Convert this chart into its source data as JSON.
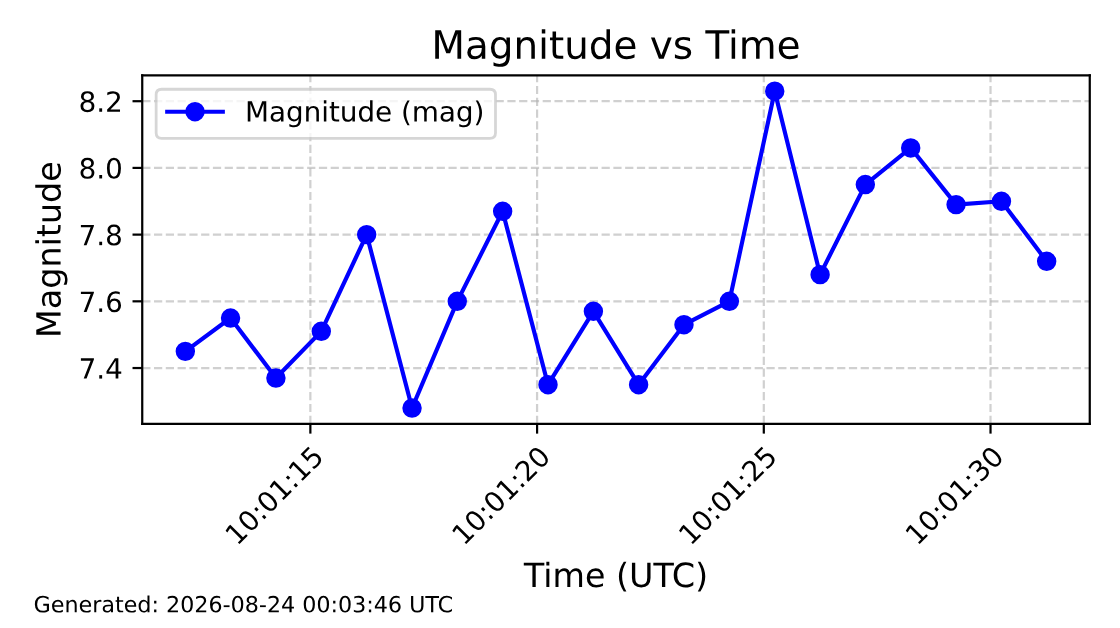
{
  "chart_data": {
    "type": "line",
    "title": "Magnitude vs Time",
    "xlabel": "Time (UTC)",
    "ylabel": "Magnitude",
    "x": [
      10.020067,
      10.020344,
      10.020622,
      10.0209,
      10.021178,
      10.021456,
      10.021733,
      10.022011,
      10.022289,
      10.022567,
      10.022844,
      10.023122,
      10.0234,
      10.023678,
      10.023956,
      10.024233,
      10.024511,
      10.024789,
      10.025067,
      10.025344
    ],
    "series": [
      {
        "name": "Magnitude (mag)",
        "color": "#0000ff",
        "values": [
          7.45,
          7.55,
          7.37,
          7.51,
          7.8,
          7.28,
          7.6,
          7.87,
          7.35,
          7.57,
          7.35,
          7.53,
          7.6,
          8.23,
          7.68,
          7.95,
          8.06,
          7.89,
          7.9,
          7.72
        ]
      }
    ],
    "xlim": [
      10.019803,
      10.025608
    ],
    "xticks": [
      {
        "value": 10.020833,
        "label": "10:01:15"
      },
      {
        "value": 10.022222,
        "label": "10:01:20"
      },
      {
        "value": 10.023611,
        "label": "10:01:25"
      },
      {
        "value": 10.025,
        "label": "10:01:30"
      }
    ],
    "ylim": [
      7.2325,
      8.2775
    ],
    "yticks": [
      7.4,
      7.6,
      7.8,
      {
        "value": 8.0,
        "label": "8.0"
      },
      8.2
    ],
    "grid": true,
    "legend": "top left",
    "marker": "circle",
    "line_style": "solid",
    "annotations": [
      "Generated: 2026-08-24 00:03:46 UTC"
    ]
  }
}
